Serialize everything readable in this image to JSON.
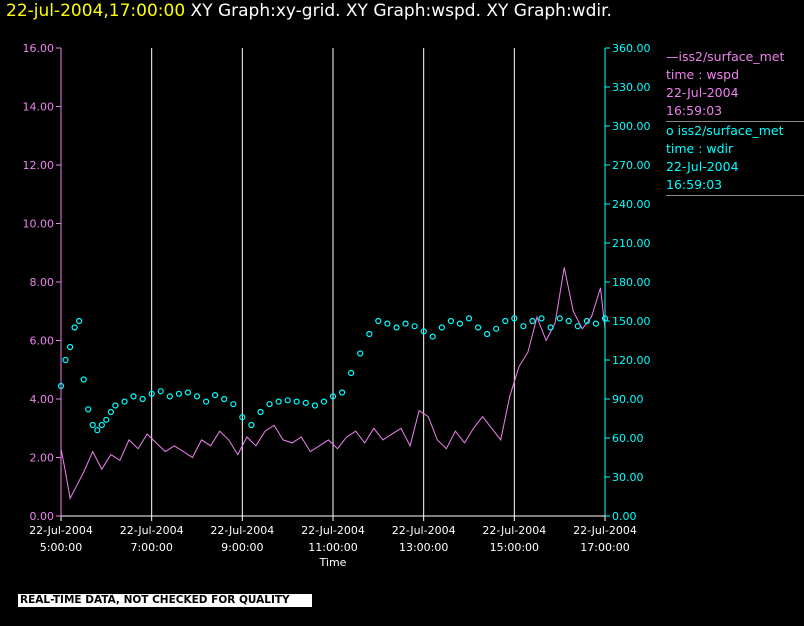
{
  "header": {
    "timestamp": "22-jul-2004,17:00:00",
    "graphs": "XY Graph:xy-grid.  XY Graph:wspd.  XY Graph:wdir."
  },
  "legend": {
    "wspd": {
      "name": "—iss2/surface_met",
      "var": "time : wspd",
      "date": "22-Jul-2004",
      "time": "16:59:03"
    },
    "wdir": {
      "name": "o  iss2/surface_met",
      "var": "time : wdir",
      "date": "22-Jul-2004",
      "time": "16:59:03"
    }
  },
  "banner": "REAL-TIME DATA, NOT CHECKED FOR QUALITY",
  "colors": {
    "wspd": "#ee82ee",
    "wdir": "#00ffff",
    "grid": "#ffffff",
    "background": "#000000"
  },
  "chart_data": {
    "type": "line",
    "xlabel": "Time",
    "x_ticks": [
      {
        "hour": 5,
        "date": "22-Jul-2004",
        "time": "5:00:00"
      },
      {
        "hour": 7,
        "date": "22-Jul-2004",
        "time": "7:00:00"
      },
      {
        "hour": 9,
        "date": "22-Jul-2004",
        "time": "9:00:00"
      },
      {
        "hour": 11,
        "date": "22-Jul-2004",
        "time": "11:00:00"
      },
      {
        "hour": 13,
        "date": "22-Jul-2004",
        "time": "13:00:00"
      },
      {
        "hour": 15,
        "date": "22-Jul-2004",
        "time": "15:00:00"
      },
      {
        "hour": 17,
        "date": "22-Jul-2004",
        "time": "17:00:00"
      }
    ],
    "xlim": [
      5,
      17
    ],
    "y_left": {
      "ylim": [
        0,
        16
      ],
      "ticks": [
        "0.00",
        "2.00",
        "4.00",
        "6.00",
        "8.00",
        "10.00",
        "12.00",
        "14.00",
        "16.00"
      ]
    },
    "y_right": {
      "ylim": [
        0,
        360
      ],
      "ticks": [
        "0.00",
        "30.00",
        "60.00",
        "90.00",
        "120.00",
        "150.00",
        "180.00",
        "210.00",
        "240.00",
        "270.00",
        "300.00",
        "330.00",
        "360.00"
      ]
    },
    "grid": "vertical",
    "series": [
      {
        "name": "iss2/surface_met time : wspd",
        "axis": "left",
        "style": "line",
        "x": [
          5.0,
          5.1,
          5.2,
          5.3,
          5.5,
          5.7,
          5.9,
          6.1,
          6.3,
          6.5,
          6.7,
          6.9,
          7.1,
          7.3,
          7.5,
          7.7,
          7.9,
          8.1,
          8.3,
          8.5,
          8.7,
          8.9,
          9.1,
          9.3,
          9.5,
          9.7,
          9.9,
          10.1,
          10.3,
          10.5,
          10.7,
          10.9,
          11.1,
          11.3,
          11.5,
          11.7,
          11.9,
          12.1,
          12.3,
          12.5,
          12.7,
          12.9,
          13.1,
          13.3,
          13.5,
          13.7,
          13.9,
          14.1,
          14.3,
          14.5,
          14.7,
          14.9,
          15.1,
          15.3,
          15.5,
          15.7,
          15.9,
          16.1,
          16.3,
          16.5,
          16.7,
          16.9,
          17.0
        ],
        "values": [
          2.3,
          1.5,
          0.6,
          0.9,
          1.5,
          2.2,
          1.6,
          2.1,
          1.9,
          2.6,
          2.3,
          2.8,
          2.5,
          2.2,
          2.4,
          2.2,
          2.0,
          2.6,
          2.4,
          2.9,
          2.6,
          2.1,
          2.7,
          2.4,
          2.9,
          3.1,
          2.6,
          2.5,
          2.7,
          2.2,
          2.4,
          2.6,
          2.3,
          2.7,
          2.9,
          2.5,
          3.0,
          2.6,
          2.8,
          3.0,
          2.4,
          3.6,
          3.4,
          2.6,
          2.3,
          2.9,
          2.5,
          3.0,
          3.4,
          3.0,
          2.6,
          4.1,
          5.1,
          5.6,
          6.8,
          6.0,
          6.6,
          8.5,
          7.0,
          6.4,
          6.8,
          7.8,
          6.4
        ]
      },
      {
        "name": "iss2/surface_met time : wdir",
        "axis": "right",
        "style": "scatter",
        "x": [
          5.0,
          5.1,
          5.2,
          5.3,
          5.4,
          5.5,
          5.6,
          5.7,
          5.8,
          5.9,
          6.0,
          6.1,
          6.2,
          6.4,
          6.6,
          6.8,
          7.0,
          7.2,
          7.4,
          7.6,
          7.8,
          8.0,
          8.2,
          8.4,
          8.6,
          8.8,
          9.0,
          9.2,
          9.4,
          9.6,
          9.8,
          10.0,
          10.2,
          10.4,
          10.6,
          10.8,
          11.0,
          11.2,
          11.4,
          11.6,
          11.8,
          12.0,
          12.2,
          12.4,
          12.6,
          12.8,
          13.0,
          13.2,
          13.4,
          13.6,
          13.8,
          14.0,
          14.2,
          14.4,
          14.6,
          14.8,
          15.0,
          15.2,
          15.4,
          15.6,
          15.8,
          16.0,
          16.2,
          16.4,
          16.6,
          16.8,
          17.0
        ],
        "values": [
          100,
          120,
          130,
          145,
          150,
          105,
          82,
          70,
          66,
          70,
          74,
          80,
          85,
          88,
          92,
          90,
          94,
          96,
          92,
          94,
          95,
          92,
          88,
          93,
          90,
          86,
          76,
          70,
          80,
          86,
          88,
          89,
          88,
          87,
          85,
          88,
          92,
          95,
          110,
          125,
          140,
          150,
          148,
          145,
          148,
          146,
          142,
          138,
          145,
          150,
          148,
          152,
          145,
          140,
          144,
          150,
          152,
          146,
          150,
          152,
          145,
          152,
          150,
          146,
          150,
          148,
          152
        ]
      }
    ]
  }
}
